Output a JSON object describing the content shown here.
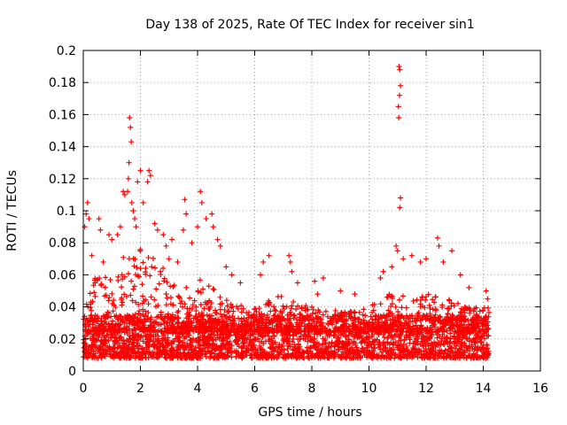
{
  "chart_data": {
    "type": "scatter",
    "title": "Day 138 of 2025, Rate Of TEC Index for receiver sin1",
    "xlabel": "GPS time / hours",
    "ylabel": "ROTI / TECUs",
    "xlim": [
      0,
      16
    ],
    "ylim": [
      0,
      0.2
    ],
    "xticks": [
      "0",
      "2",
      "4",
      "6",
      "8",
      "10",
      "12",
      "14",
      "16"
    ],
    "yticks": [
      "0",
      "0.02",
      "0.04",
      "0.06",
      "0.08",
      "0.1",
      "0.12",
      "0.14",
      "0.16",
      "0.18",
      "0.2"
    ],
    "grid": true,
    "marker": "+",
    "color": "#ff0000",
    "data_range_hours": [
      0,
      14.2
    ],
    "typical_band": [
      0.008,
      0.035
    ],
    "series": [
      {
        "name": "ROTI",
        "points": [
          [
            1.62,
            0.158
          ],
          [
            1.65,
            0.152
          ],
          [
            1.68,
            0.143
          ],
          [
            1.6,
            0.13
          ],
          [
            1.58,
            0.12
          ],
          [
            1.55,
            0.112
          ],
          [
            1.4,
            0.112
          ],
          [
            1.45,
            0.11
          ],
          [
            1.7,
            0.105
          ],
          [
            1.9,
            0.118
          ],
          [
            2.0,
            0.125
          ],
          [
            2.3,
            0.125
          ],
          [
            2.25,
            0.118
          ],
          [
            2.35,
            0.122
          ],
          [
            2.1,
            0.105
          ],
          [
            1.75,
            0.1
          ],
          [
            0.15,
            0.105
          ],
          [
            0.1,
            0.098
          ],
          [
            0.2,
            0.095
          ],
          [
            0.05,
            0.09
          ],
          [
            0.55,
            0.095
          ],
          [
            0.6,
            0.088
          ],
          [
            0.9,
            0.085
          ],
          [
            1.0,
            0.082
          ],
          [
            1.2,
            0.085
          ],
          [
            1.3,
            0.09
          ],
          [
            1.8,
            0.095
          ],
          [
            1.85,
            0.09
          ],
          [
            2.5,
            0.092
          ],
          [
            2.6,
            0.088
          ],
          [
            2.8,
            0.085
          ],
          [
            2.9,
            0.078
          ],
          [
            3.1,
            0.082
          ],
          [
            3.5,
            0.088
          ],
          [
            3.6,
            0.098
          ],
          [
            3.55,
            0.107
          ],
          [
            3.8,
            0.08
          ],
          [
            4.1,
            0.112
          ],
          [
            4.15,
            0.105
          ],
          [
            4.0,
            0.09
          ],
          [
            4.3,
            0.095
          ],
          [
            4.5,
            0.098
          ],
          [
            4.55,
            0.09
          ],
          [
            4.7,
            0.082
          ],
          [
            4.8,
            0.078
          ],
          [
            5.0,
            0.065
          ],
          [
            5.2,
            0.06
          ],
          [
            5.5,
            0.055
          ],
          [
            6.3,
            0.068
          ],
          [
            6.5,
            0.072
          ],
          [
            6.2,
            0.06
          ],
          [
            7.2,
            0.072
          ],
          [
            7.25,
            0.068
          ],
          [
            7.3,
            0.062
          ],
          [
            7.5,
            0.055
          ],
          [
            8.1,
            0.056
          ],
          [
            8.4,
            0.058
          ],
          [
            8.2,
            0.048
          ],
          [
            9.0,
            0.05
          ],
          [
            9.5,
            0.048
          ],
          [
            10.4,
            0.058
          ],
          [
            10.5,
            0.062
          ],
          [
            10.8,
            0.065
          ],
          [
            11.05,
            0.19
          ],
          [
            11.08,
            0.188
          ],
          [
            11.1,
            0.178
          ],
          [
            11.07,
            0.172
          ],
          [
            11.03,
            0.165
          ],
          [
            11.04,
            0.158
          ],
          [
            11.1,
            0.108
          ],
          [
            11.08,
            0.102
          ],
          [
            10.95,
            0.078
          ],
          [
            11.0,
            0.075
          ],
          [
            11.2,
            0.07
          ],
          [
            11.5,
            0.072
          ],
          [
            11.8,
            0.068
          ],
          [
            12.0,
            0.07
          ],
          [
            12.4,
            0.083
          ],
          [
            12.45,
            0.078
          ],
          [
            12.9,
            0.075
          ],
          [
            12.6,
            0.068
          ],
          [
            13.2,
            0.06
          ],
          [
            13.5,
            0.052
          ],
          [
            14.1,
            0.05
          ],
          [
            14.15,
            0.045
          ],
          [
            0.3,
            0.072
          ],
          [
            0.7,
            0.068
          ],
          [
            3.0,
            0.07
          ],
          [
            2.7,
            0.062
          ],
          [
            3.3,
            0.068
          ]
        ]
      }
    ]
  }
}
